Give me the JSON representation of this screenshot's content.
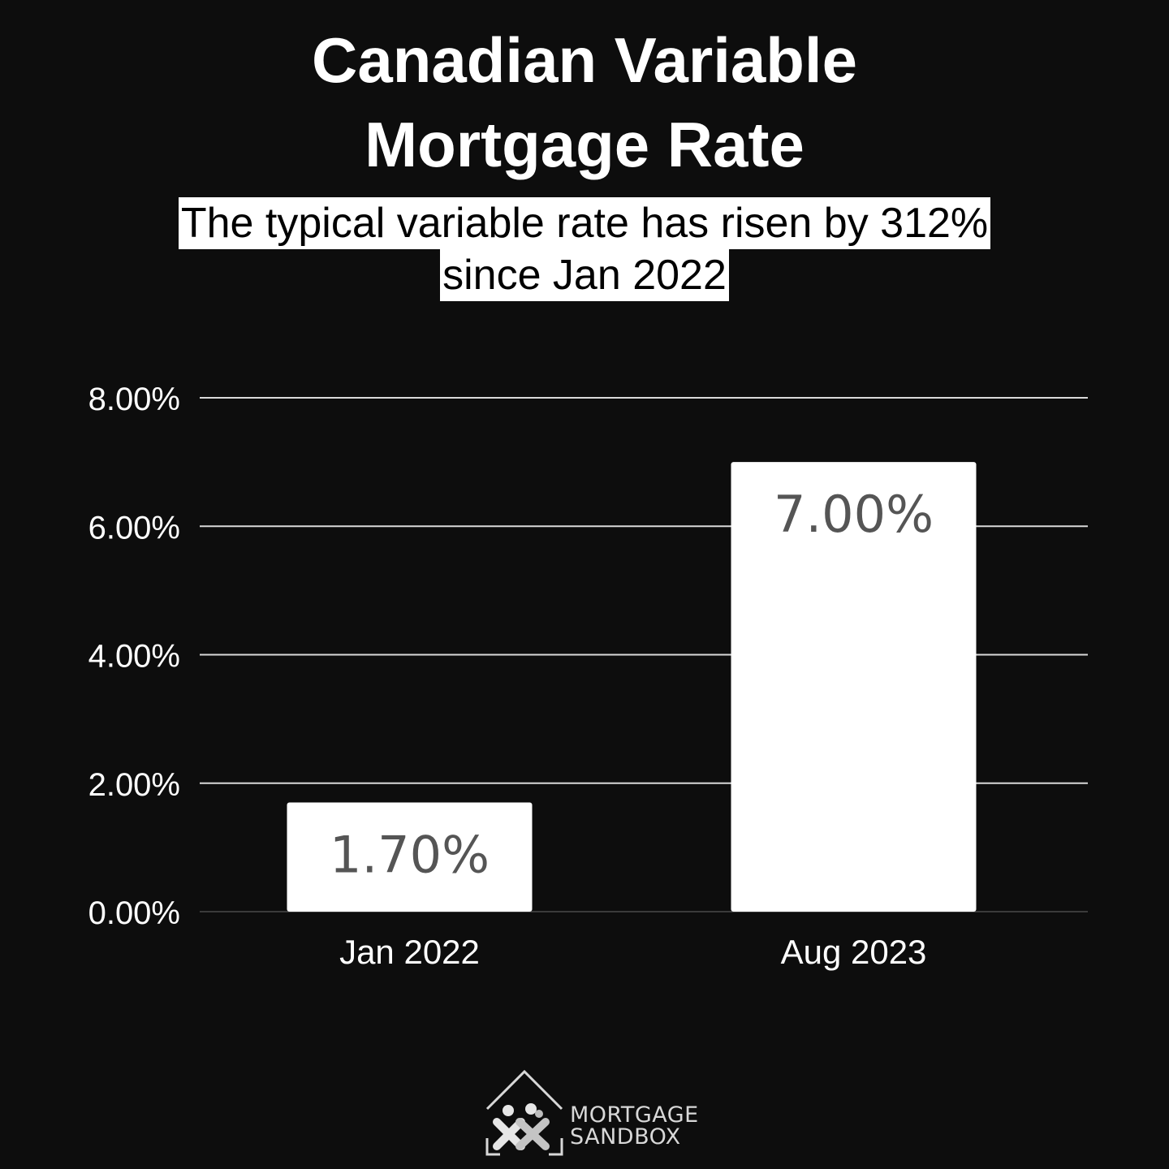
{
  "header": {
    "title_line1": "Canadian Variable",
    "title_line2": "Mortgage Rate",
    "subtitle_line1": "The typical variable rate has risen by 312%",
    "subtitle_line2": "since Jan 2022"
  },
  "chart_data": {
    "type": "bar",
    "title": "Canadian Variable Mortgage Rate",
    "subtitle": "The typical variable rate has risen by 312% since Jan 2022",
    "categories": [
      "Jan 2022",
      "Aug 2023"
    ],
    "values": [
      1.7,
      7.0
    ],
    "data_labels": [
      "1.70%",
      "7.00%"
    ],
    "y_ticks": [
      "0.00%",
      "2.00%",
      "4.00%",
      "6.00%",
      "8.00%"
    ],
    "y_tick_values": [
      0,
      2,
      4,
      6,
      8
    ],
    "ylim": [
      0,
      8
    ],
    "xlabel": "",
    "ylabel": "",
    "grid": true,
    "legend": "none",
    "bar_color": "#ffffff",
    "background": "#0d0d0d"
  },
  "logo": {
    "line1": "MORTGAGE",
    "line2": "SANDBOX"
  }
}
